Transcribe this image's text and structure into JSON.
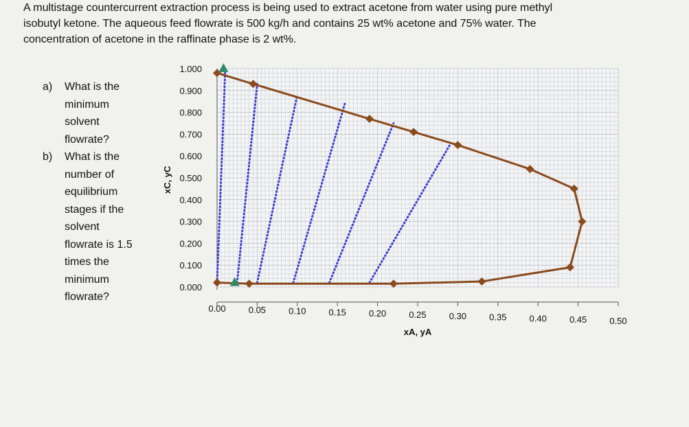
{
  "problem": {
    "intro": "A multistage countercurrent extraction process is being used to extract acetone from water using pure methyl isobutyl ketone. The aqueous feed flowrate is 500 kg/h and contains 25 wt% acetone and 75% water. The concentration of acetone in the raffinate phase is 2 wt%.",
    "questions": [
      {
        "label": "a)",
        "text": "What is the minimum solvent flowrate?"
      },
      {
        "label": "b)",
        "text": "What is the number of equilibrium stages if the solvent flowrate is 1.5 times the minimum flowrate?"
      }
    ]
  },
  "chart_data": {
    "type": "line",
    "xlabel": "xA, yA",
    "ylabel": "xC, yC",
    "xlim": [
      0,
      0.5
    ],
    "ylim": [
      0,
      1.0
    ],
    "x_ticks": [
      "0.00",
      "0.05",
      "0.10",
      "0.15",
      "0.20",
      "0.25",
      "0.30",
      "0.35",
      "0.40",
      "0.45",
      "0.50"
    ],
    "y_ticks": [
      "0.000",
      "0.100",
      "0.200",
      "0.300",
      "0.400",
      "0.500",
      "0.600",
      "0.700",
      "0.800",
      "0.900",
      "1.000"
    ],
    "grid": true,
    "colors": {
      "binodal": "#8b4a1c",
      "tie_lines": "#3b3bd6",
      "markers": "#2e8b6a"
    },
    "binodal_curve": [
      [
        0.0,
        0.98
      ],
      [
        0.045,
        0.93
      ],
      [
        0.19,
        0.77
      ],
      [
        0.245,
        0.71
      ],
      [
        0.3,
        0.65
      ],
      [
        0.39,
        0.54
      ],
      [
        0.445,
        0.45
      ],
      [
        0.455,
        0.3
      ],
      [
        0.44,
        0.09
      ],
      [
        0.33,
        0.025
      ],
      [
        0.22,
        0.015
      ],
      [
        0.04,
        0.015
      ],
      [
        0.0,
        0.02
      ]
    ],
    "tie_lines": [
      [
        [
          0.0,
          0.02
        ],
        [
          0.01,
          0.98
        ]
      ],
      [
        [
          0.025,
          0.02
        ],
        [
          0.05,
          0.93
        ]
      ],
      [
        [
          0.05,
          0.02
        ],
        [
          0.1,
          0.88
        ]
      ],
      [
        [
          0.095,
          0.02
        ],
        [
          0.16,
          0.85
        ]
      ],
      [
        [
          0.14,
          0.02
        ],
        [
          0.22,
          0.75
        ]
      ],
      [
        [
          0.19,
          0.02
        ],
        [
          0.29,
          0.65
        ]
      ]
    ],
    "triangle_points": [
      [
        0.008,
        1.0
      ],
      [
        0.022,
        0.02
      ]
    ]
  }
}
